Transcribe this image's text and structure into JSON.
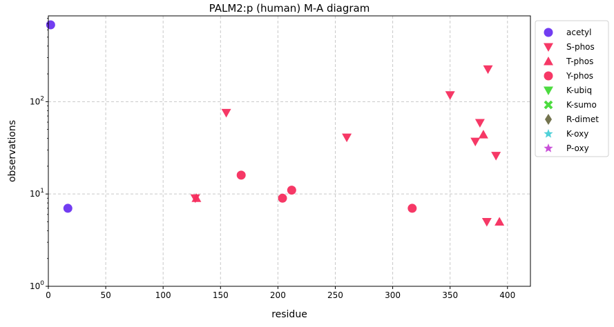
{
  "chart_data": {
    "type": "scatter",
    "title": "PALM2:p (human) M-A diagram",
    "xlabel": "residue",
    "ylabel": "observations",
    "xlim": [
      0,
      420
    ],
    "ylim": [
      1,
      850
    ],
    "yscale": "log",
    "grid": true,
    "legend_position": "outside-right",
    "x_ticks": [
      "0",
      "50",
      "100",
      "150",
      "200",
      "250",
      "300",
      "350",
      "400"
    ],
    "x_tick_values": [
      0,
      50,
      100,
      150,
      200,
      250,
      300,
      350,
      400
    ],
    "y_ticks": [
      {
        "value": 1,
        "base": "10",
        "exp": "0"
      },
      {
        "value": 10,
        "base": "10",
        "exp": "1"
      },
      {
        "value": 100,
        "base": "10",
        "exp": "2"
      }
    ],
    "series": [
      {
        "name": "acetyl",
        "marker": "circle",
        "color": "#6a33f0",
        "points": [
          {
            "x": 2,
            "y": 680
          },
          {
            "x": 17,
            "y": 7
          }
        ]
      },
      {
        "name": "S-phos",
        "marker": "triangle-down",
        "color": "#f62d5e",
        "points": [
          {
            "x": 128,
            "y": 9
          },
          {
            "x": 155,
            "y": 76
          },
          {
            "x": 260,
            "y": 41
          },
          {
            "x": 350,
            "y": 118
          },
          {
            "x": 372,
            "y": 37
          },
          {
            "x": 376,
            "y": 59
          },
          {
            "x": 382,
            "y": 5
          },
          {
            "x": 383,
            "y": 225
          },
          {
            "x": 390,
            "y": 26
          }
        ]
      },
      {
        "name": "T-phos",
        "marker": "triangle-up",
        "color": "#f62d5e",
        "points": [
          {
            "x": 129,
            "y": 9
          },
          {
            "x": 379,
            "y": 44
          },
          {
            "x": 393,
            "y": 5
          }
        ]
      },
      {
        "name": "Y-phos",
        "marker": "circle",
        "color": "#f62d5e",
        "points": [
          {
            "x": 168,
            "y": 16
          },
          {
            "x": 204,
            "y": 9
          },
          {
            "x": 212,
            "y": 11
          },
          {
            "x": 317,
            "y": 7
          }
        ]
      },
      {
        "name": "K-ubiq",
        "marker": "triangle-down",
        "color": "#43d936",
        "points": []
      },
      {
        "name": "K-sumo",
        "marker": "x",
        "color": "#43d936",
        "points": []
      },
      {
        "name": "R-dimet",
        "marker": "diamond",
        "color": "#6b6b45",
        "points": []
      },
      {
        "name": "K-oxy",
        "marker": "star",
        "color": "#47cfd6",
        "points": []
      },
      {
        "name": "P-oxy",
        "marker": "star",
        "color": "#c647d6",
        "points": []
      }
    ]
  }
}
